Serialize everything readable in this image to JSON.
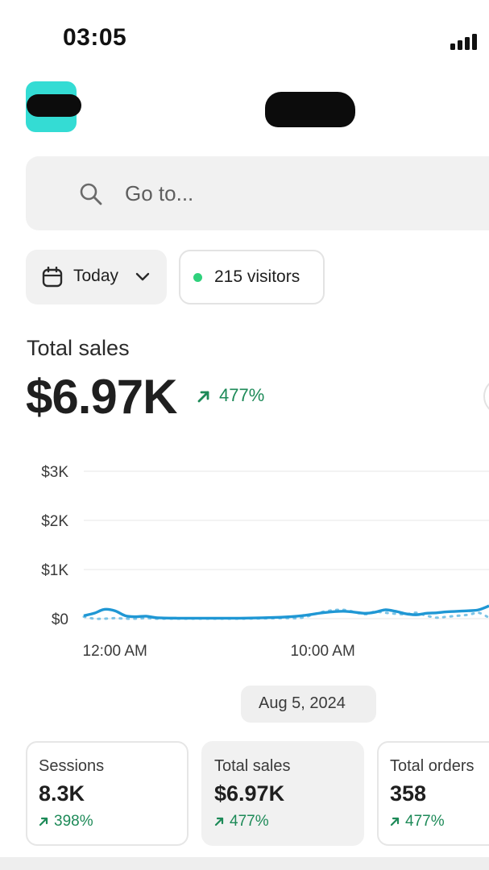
{
  "status_bar": {
    "time": "03:05",
    "signal_icon": "cellular-signal-icon"
  },
  "header": {
    "logo_color": "#34dcd4"
  },
  "search": {
    "placeholder": "Go to...",
    "icon": "search-icon"
  },
  "filters": {
    "date_range": {
      "label": "Today",
      "icon": "calendar-icon",
      "chevron": "chevron-down-icon"
    },
    "live_visitors": {
      "label": "215 visitors",
      "dot_color": "#2fd17c"
    }
  },
  "summary": {
    "title": "Total sales",
    "value": "$6.97K",
    "change": "477%",
    "change_color": "#1d8a58"
  },
  "chart_data": {
    "type": "line",
    "title": "",
    "xlabel": "",
    "ylabel": "",
    "y_tick_labels": [
      "$3K",
      "$2K",
      "$1K",
      "$0"
    ],
    "x_tick_labels": [
      "12:00 AM",
      "10:00 AM"
    ],
    "ylim": [
      0,
      3000
    ],
    "x_range_hours": [
      -1.5,
      18
    ],
    "grid": true,
    "legend": "none",
    "series": [
      {
        "style": "solid",
        "color": "#1f97d4",
        "x": [
          -1.5,
          -1.0,
          -0.5,
          0.0,
          0.5,
          1.0,
          1.5,
          2.0,
          3.0,
          4.0,
          6.0,
          8.0,
          9.0,
          10.0,
          11.0,
          12.0,
          12.5,
          13.0,
          13.5,
          14.0,
          14.5,
          15.0,
          15.5,
          16.0,
          17.0,
          17.5,
          18.0
        ],
        "y": [
          60,
          110,
          190,
          160,
          60,
          40,
          50,
          20,
          10,
          10,
          10,
          30,
          60,
          120,
          150,
          110,
          130,
          180,
          150,
          100,
          80,
          110,
          120,
          140,
          160,
          180,
          260
        ]
      },
      {
        "style": "dotted",
        "color": "#7cc4e6",
        "x": [
          -1.5,
          -1.0,
          -0.5,
          0.0,
          0.5,
          1.0,
          1.5,
          2.0,
          3.0,
          4.0,
          6.0,
          8.0,
          9.0,
          10.0,
          11.0,
          12.0,
          12.5,
          13.0,
          13.5,
          14.0,
          14.5,
          15.0,
          15.5,
          16.0,
          17.0,
          17.5,
          18.0
        ],
        "y": [
          40,
          0,
          0,
          10,
          0,
          0,
          10,
          0,
          0,
          0,
          0,
          10,
          20,
          140,
          180,
          90,
          140,
          120,
          100,
          90,
          120,
          60,
          20,
          40,
          80,
          120,
          20
        ]
      }
    ]
  },
  "selected_date": "Aug 5, 2024",
  "metric_cards": [
    {
      "label": "Sessions",
      "value": "8.3K",
      "change": "398%"
    },
    {
      "label": "Total sales",
      "value": "$6.97K",
      "change": "477%"
    },
    {
      "label": "Total orders",
      "value": "358",
      "change": "477%"
    }
  ]
}
